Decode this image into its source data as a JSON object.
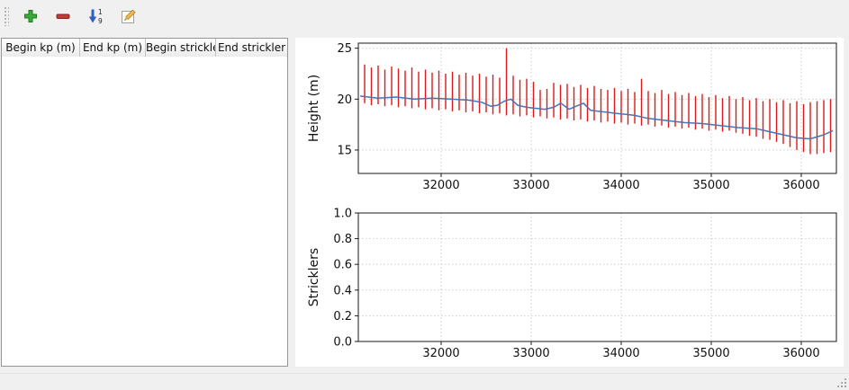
{
  "window": {
    "background": "#f0f0f0"
  },
  "toolbar": {
    "buttons": [
      {
        "id": "add-row",
        "icon": "plus-icon",
        "color": "#3ba93b"
      },
      {
        "id": "remove-row",
        "icon": "minus-icon",
        "color": "#c23b3b"
      },
      {
        "id": "sort-rows",
        "icon": "sort-ascending-icon",
        "color": "#2f5fc4",
        "digit_top": "1",
        "digit_bottom": "9"
      },
      {
        "id": "edit-row",
        "icon": "edit-pencil-icon",
        "color": "#f2b84b"
      }
    ]
  },
  "table": {
    "columns": [
      "Begin kp (m)",
      "End kp (m)",
      "Begin strickler",
      "End strickler"
    ],
    "rows": []
  },
  "chart_data": [
    {
      "type": "bar",
      "title": "",
      "xlabel": "",
      "ylabel": "Height (m)",
      "xlim": [
        31080,
        36390
      ],
      "ylim": [
        12.7,
        25.5
      ],
      "xticks": [
        32000,
        33000,
        34000,
        35000,
        36000
      ],
      "xtick_labels": [
        "32000",
        "33000",
        "34000",
        "35000",
        "36000"
      ],
      "yticks": [
        15,
        20,
        25
      ],
      "ytick_labels": [
        "15",
        "20",
        "25"
      ],
      "grid": true,
      "legend": "none",
      "bar_color": "#dc1a1a",
      "line_color": "#4c72b0",
      "bars": {
        "x": [
          31150,
          31225,
          31300,
          31375,
          31450,
          31525,
          31600,
          31675,
          31750,
          31825,
          31900,
          31975,
          32050,
          32125,
          32200,
          32275,
          32350,
          32425,
          32500,
          32575,
          32650,
          32725,
          32800,
          32875,
          32950,
          33025,
          33100,
          33175,
          33250,
          33325,
          33400,
          33475,
          33550,
          33625,
          33700,
          33775,
          33850,
          33925,
          34000,
          34075,
          34150,
          34225,
          34300,
          34375,
          34450,
          34525,
          34600,
          34675,
          34750,
          34825,
          34900,
          34975,
          35050,
          35125,
          35200,
          35275,
          35350,
          35425,
          35500,
          35575,
          35650,
          35725,
          35800,
          35875,
          35950,
          36025,
          36100,
          36175,
          36250,
          36325
        ],
        "ymax": [
          23.4,
          23.1,
          23.3,
          22.9,
          23.2,
          23.0,
          22.8,
          23.1,
          22.7,
          22.9,
          22.6,
          22.8,
          22.5,
          22.7,
          22.4,
          22.6,
          22.3,
          22.5,
          22.2,
          22.4,
          22.1,
          25.0,
          22.3,
          21.9,
          22.0,
          21.7,
          20.9,
          21.0,
          21.6,
          21.4,
          21.5,
          21.2,
          21.4,
          21.1,
          21.3,
          21.0,
          20.9,
          21.1,
          20.8,
          21.0,
          20.7,
          22.0,
          20.8,
          20.6,
          20.9,
          20.5,
          20.7,
          20.4,
          20.6,
          20.3,
          20.5,
          20.2,
          20.4,
          20.1,
          20.3,
          20.0,
          20.2,
          19.9,
          20.1,
          19.8,
          20.0,
          19.7,
          19.9,
          19.6,
          19.8,
          19.5,
          19.7,
          19.8,
          19.9,
          20.0
        ],
        "ymin": [
          19.6,
          19.4,
          19.5,
          19.3,
          19.4,
          19.2,
          19.3,
          19.1,
          19.2,
          19.0,
          19.1,
          18.9,
          19.0,
          18.8,
          18.9,
          18.7,
          18.8,
          18.6,
          18.7,
          18.5,
          18.6,
          18.4,
          18.5,
          18.3,
          18.4,
          18.2,
          18.3,
          18.1,
          18.2,
          18.0,
          18.1,
          17.9,
          18.0,
          17.8,
          17.9,
          17.7,
          17.8,
          17.6,
          17.7,
          17.5,
          17.6,
          17.4,
          17.5,
          17.3,
          17.4,
          17.2,
          17.3,
          17.1,
          17.2,
          17.0,
          17.1,
          16.9,
          17.0,
          16.8,
          16.9,
          16.7,
          16.6,
          16.4,
          16.3,
          16.1,
          16.0,
          15.8,
          15.6,
          15.3,
          15.0,
          14.8,
          14.6,
          14.6,
          14.7,
          14.8
        ]
      },
      "line": {
        "x": [
          31100,
          31300,
          31500,
          31700,
          31900,
          32100,
          32300,
          32450,
          32550,
          32625,
          32700,
          32775,
          32850,
          32950,
          33050,
          33150,
          33250,
          33330,
          33420,
          33500,
          33580,
          33660,
          33750,
          33850,
          33950,
          34050,
          34150,
          34300,
          34500,
          34700,
          34900,
          35100,
          35300,
          35500,
          35650,
          35800,
          35950,
          36100,
          36250,
          36350
        ],
        "y": [
          20.3,
          20.1,
          20.2,
          20.0,
          20.1,
          20.0,
          19.9,
          19.7,
          19.3,
          19.4,
          19.8,
          20.0,
          19.4,
          19.2,
          19.1,
          19.0,
          19.2,
          19.6,
          19.0,
          19.3,
          19.6,
          18.9,
          18.8,
          18.7,
          18.6,
          18.5,
          18.4,
          18.1,
          17.9,
          17.7,
          17.6,
          17.4,
          17.2,
          17.1,
          16.8,
          16.5,
          16.2,
          16.1,
          16.5,
          16.9
        ]
      }
    },
    {
      "type": "line",
      "title": "",
      "xlabel": "",
      "ylabel": "Stricklers",
      "xlim": [
        31080,
        36390
      ],
      "ylim": [
        0.0,
        1.0
      ],
      "xticks": [
        32000,
        33000,
        34000,
        35000,
        36000
      ],
      "xtick_labels": [
        "32000",
        "33000",
        "34000",
        "35000",
        "36000"
      ],
      "yticks": [
        0.0,
        0.2,
        0.4,
        0.6,
        0.8,
        1.0
      ],
      "ytick_labels": [
        "0.0",
        "0.2",
        "0.4",
        "0.6",
        "0.8",
        "1.0"
      ],
      "grid": true,
      "legend": "none",
      "series": []
    }
  ]
}
